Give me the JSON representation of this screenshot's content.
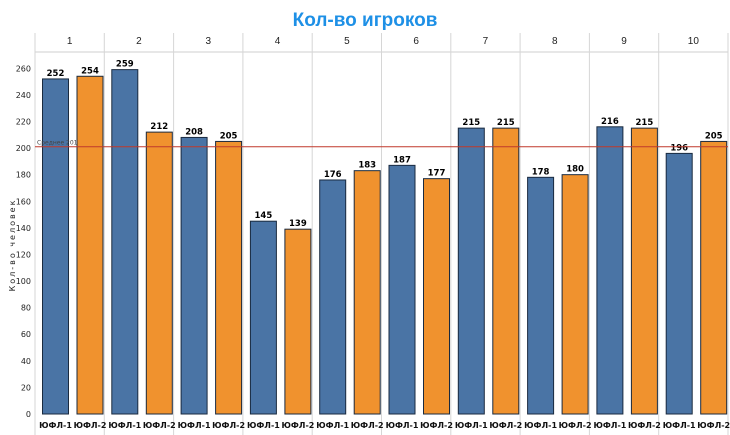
{
  "chart_data": {
    "type": "bar",
    "title": "Кол-во игроков",
    "ylabel": "Кол-во человек",
    "xlabel": "",
    "ylim": [
      0,
      270
    ],
    "yticks": [
      0,
      20,
      40,
      60,
      80,
      100,
      120,
      140,
      160,
      180,
      200,
      220,
      240,
      260
    ],
    "grid": false,
    "groups": [
      "1",
      "2",
      "3",
      "4",
      "5",
      "6",
      "7",
      "8",
      "9",
      "10"
    ],
    "series": [
      {
        "name": "ЮФЛ-1",
        "color": "#4a74a5",
        "values": [
          252,
          259,
          208,
          145,
          176,
          187,
          215,
          178,
          216,
          196
        ]
      },
      {
        "name": "ЮФЛ-2",
        "color": "#f0922e",
        "values": [
          254,
          212,
          205,
          139,
          183,
          177,
          215,
          180,
          215,
          205
        ]
      }
    ],
    "average": {
      "label": "Среднее 201",
      "value": 201,
      "color": "#c0392b"
    },
    "title_color": "#1e90e6"
  }
}
